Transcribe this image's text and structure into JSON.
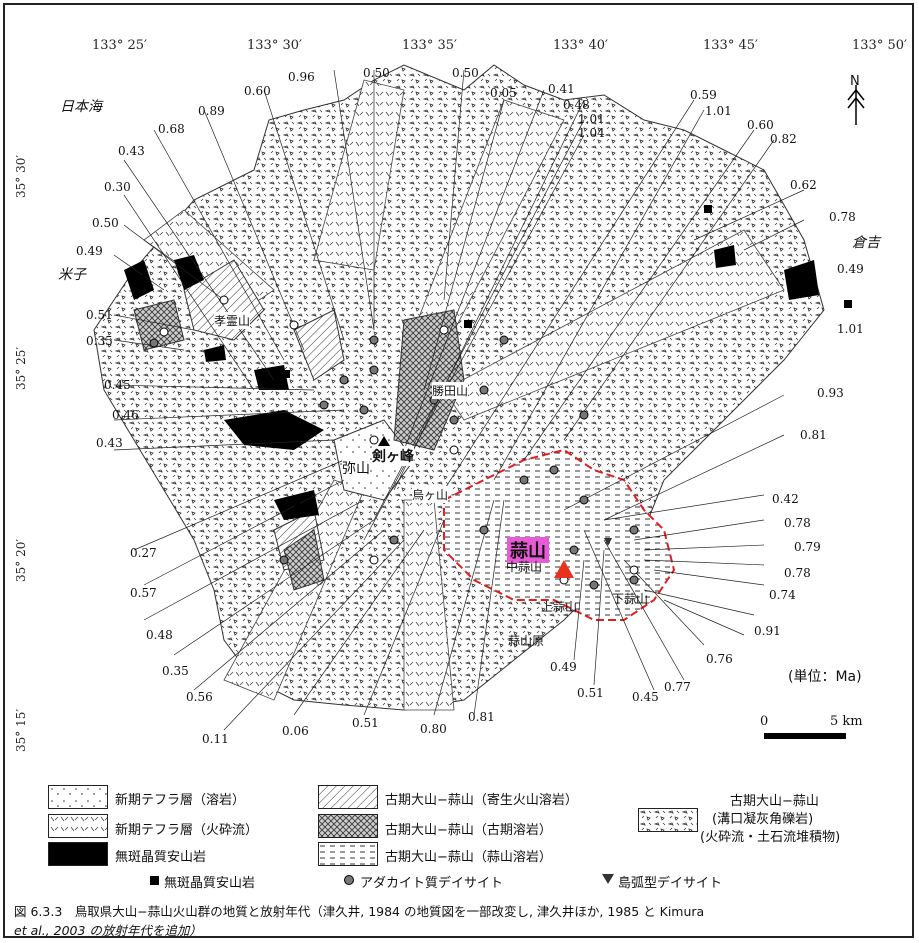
{
  "longitudes": [
    "133° 25′",
    "133° 30′",
    "133° 35′",
    "133° 40′",
    "133° 45′",
    "133° 50′"
  ],
  "latitudes": [
    "35° 30′",
    "35° 25′",
    "35° 20′",
    "35° 15′"
  ],
  "places": {
    "sea": "日本海",
    "yonago": "米子",
    "kurayoshi": "倉吉",
    "kohozan": "孝霊山",
    "katsumayama": "勝田山",
    "misen": "弥山",
    "kengamine": "剣ヶ峰",
    "karasugasen": "烏ヶ山",
    "hiruzen_highlight": "蒜山",
    "naka_hiruzen": "中蒜山",
    "kami_hiruzen": "上蒜山",
    "shimo_hiruzen": "下蒜山",
    "hiruzenbara": "蒜山原",
    "north": "N"
  },
  "ages": [
    "0.96",
    "0.50",
    "0.50",
    "0.60",
    "0.89",
    "0.68",
    "0.05",
    "0.41",
    "0.48",
    "1.01",
    "1.04",
    "0.59",
    "1.01",
    "0.60",
    "0.82",
    "0.43",
    "0.30",
    "0.62",
    "0.50",
    "0.78",
    "0.49",
    "0.49",
    "1.01",
    "0.51",
    "0.35",
    "0.45",
    "0.46",
    "0.43",
    "0.93",
    "0.81",
    "0.42",
    "0.78",
    "0.79",
    "0.78",
    "0.74",
    "0.91",
    "0.27",
    "0.57",
    "0.48",
    "0.35",
    "0.56",
    "0.11",
    "0.06",
    "0.51",
    "0.80",
    "0.81",
    "0.49",
    "0.51",
    "0.45",
    "0.77",
    "0.76"
  ],
  "unit": "(単位：Ma)",
  "scale": {
    "zero": "0",
    "five": "5 km"
  },
  "legend": {
    "tephra_lava": "新期テフラ層（溶岩）",
    "tephra_pyroclastic": "新期テフラ層（火砕流）",
    "aphyric": "無斑晶質安山岩",
    "parasitic": "古期大山−蒜山（寄生火山溶岩）",
    "old_lava": "古期大山−蒜山（古期溶岩）",
    "hiruzen_lava": "古期大山−蒜山（蒜山溶岩）",
    "breccia_title": "古期大山−蒜山",
    "breccia_sub1": "(溝口凝灰角礫岩)",
    "breccia_sub2": "(火砕流・土石流堆積物)"
  },
  "symbols": {
    "aphyric": "無斑晶質安山岩",
    "adakite": "アダカイト質デイサイト",
    "arc": "島弧型デイサイト"
  },
  "caption": {
    "line1": "図 6.3.3　鳥取県大山−蒜山火山群の地質と放射年代（津久井, 1984 の地質図を一部改変し, 津久井ほか, 1985 と Kimura",
    "line2": "et al., 2003 の放射年代を追加）"
  },
  "colors": {
    "highlight_outline": "#e02020",
    "highlight_label_bg": "#e85ad6",
    "peak_triangle": "#e8321e"
  }
}
